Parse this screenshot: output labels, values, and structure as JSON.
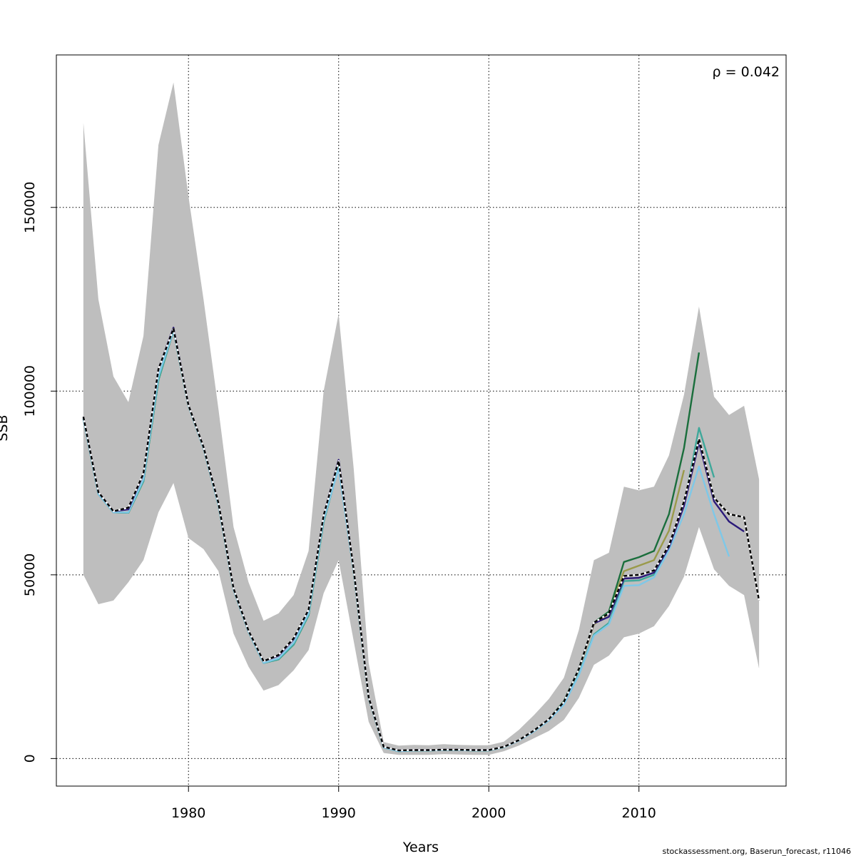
{
  "chart_data": {
    "type": "line",
    "title": "",
    "xlabel": "Years",
    "ylabel": "SSB",
    "annotation": "ρ = 0.042",
    "footer": "stockassessment.org, Baserun_forecast, r11046",
    "xlim": [
      1971.2,
      2019.8
    ],
    "ylim": [
      -7500,
      191500
    ],
    "x_ticks": [
      1980,
      1990,
      2000,
      2010
    ],
    "y_ticks": [
      0,
      50000,
      100000,
      150000
    ],
    "grid": true,
    "band_color": "#bebebe",
    "band": {
      "x": [
        1973,
        1974,
        1975,
        1976,
        1977,
        1978,
        1979,
        1980,
        1981,
        1982,
        1983,
        1984,
        1985,
        1986,
        1987,
        1988,
        1989,
        1990,
        1991,
        1992,
        1993,
        1994,
        1995,
        1996,
        1997,
        1998,
        1999,
        2000,
        2001,
        2002,
        2003,
        2004,
        2005,
        2006,
        2007,
        2008,
        2009,
        2010,
        2011,
        2012,
        2013,
        2014,
        2015,
        2016,
        2017,
        2018
      ],
      "lower": [
        50000,
        42000,
        43000,
        48000,
        54000,
        67000,
        75000,
        60000,
        57000,
        51000,
        34000,
        25000,
        18500,
        20000,
        24000,
        29500,
        45000,
        54000,
        32000,
        10000,
        1500,
        1000,
        1000,
        1000,
        1200,
        1100,
        1000,
        1000,
        2000,
        3500,
        5500,
        7500,
        10500,
        16500,
        25500,
        28000,
        33000,
        34000,
        36000,
        41500,
        49500,
        63000,
        51500,
        47000,
        44500,
        24500
      ],
      "upper": [
        173000,
        125000,
        104000,
        97000,
        115000,
        167000,
        184000,
        153000,
        125000,
        95000,
        63000,
        48000,
        37500,
        39500,
        44500,
        56500,
        100000,
        121000,
        79000,
        26000,
        4500,
        3500,
        3700,
        3600,
        3900,
        3700,
        3600,
        3600,
        4600,
        7800,
        11800,
        16200,
        22000,
        35000,
        54000,
        56000,
        74000,
        73000,
        74000,
        82500,
        99000,
        123000,
        98500,
        93500,
        96000,
        76000
      ]
    },
    "series": [
      {
        "color": "#000000",
        "dashed": true,
        "width": 2.4,
        "x": [
          1973,
          1974,
          1975,
          1976,
          1977,
          1978,
          1979,
          1980,
          1981,
          1982,
          1983,
          1984,
          1985,
          1986,
          1987,
          1988,
          1989,
          1990,
          1991,
          1992,
          1993,
          1994,
          1995,
          1996,
          1997,
          1998,
          1999,
          2000,
          2001,
          2002,
          2003,
          2004,
          2005,
          2006,
          2007,
          2008,
          2009,
          2010,
          2011,
          2012,
          2013,
          2014,
          2015,
          2016,
          2017,
          2018
        ],
        "values": [
          93000,
          72500,
          67300,
          68300,
          77600,
          106000,
          117000,
          96200,
          84800,
          69500,
          46300,
          34800,
          26500,
          28200,
          32700,
          40500,
          66200,
          81000,
          51500,
          16700,
          3200,
          2200,
          2300,
          2300,
          2400,
          2400,
          2300,
          2300,
          3200,
          5000,
          7600,
          10700,
          15400,
          24400,
          37000,
          39500,
          49700,
          50000,
          51200,
          58000,
          70000,
          87000,
          71000,
          66500,
          65700,
          43000
        ]
      },
      {
        "color": "#2b1a7a",
        "dashed": false,
        "width": 2.4,
        "x": [
          1973,
          1974,
          1975,
          1976,
          1977,
          1978,
          1979,
          1980,
          1981,
          1982,
          1983,
          1984,
          1985,
          1986,
          1987,
          1988,
          1989,
          1990,
          1991,
          1992,
          1993,
          1994,
          1995,
          1996,
          1997,
          1998,
          1999,
          2000,
          2001,
          2002,
          2003,
          2004,
          2005,
          2006,
          2007,
          2008,
          2009,
          2010,
          2011,
          2012,
          2013,
          2014,
          2015,
          2016,
          2017
        ],
        "values": [
          93000,
          72500,
          67300,
          67800,
          77500,
          106000,
          117300,
          96200,
          84800,
          69500,
          46300,
          34800,
          26500,
          28000,
          32500,
          40500,
          66200,
          81300,
          51500,
          16700,
          3200,
          2200,
          2300,
          2300,
          2400,
          2400,
          2300,
          2300,
          3200,
          5000,
          7600,
          10700,
          15400,
          24400,
          36800,
          38600,
          49000,
          49200,
          50600,
          57500,
          68800,
          86000,
          70000,
          64500,
          61800
        ]
      },
      {
        "color": "#7ec8e8",
        "dashed": false,
        "width": 2.4,
        "x": [
          1973,
          1974,
          1975,
          1976,
          1977,
          1978,
          1979,
          1980,
          1981,
          1982,
          1983,
          1984,
          1985,
          1986,
          1987,
          1988,
          1989,
          1990,
          1991,
          1992,
          1993,
          1994,
          1995,
          1996,
          1997,
          1998,
          1999,
          2000,
          2001,
          2002,
          2003,
          2004,
          2005,
          2006,
          2007,
          2008,
          2009,
          2010,
          2011,
          2012,
          2013,
          2014,
          2015,
          2016
        ],
        "values": [
          92500,
          72000,
          67000,
          67000,
          76000,
          104000,
          116500,
          96000,
          84500,
          69000,
          46000,
          34500,
          26000,
          27300,
          31500,
          39500,
          65000,
          79000,
          51000,
          16500,
          3000,
          2000,
          2200,
          2200,
          2300,
          2300,
          2200,
          2200,
          3100,
          4900,
          7400,
          10400,
          14700,
          22700,
          33500,
          36500,
          47000,
          47200,
          49300,
          56700,
          66500,
          79500,
          66500,
          55000
        ]
      },
      {
        "color": "#3ea89a",
        "dashed": false,
        "width": 2.4,
        "x": [
          1973,
          1974,
          1975,
          1976,
          1977,
          1978,
          1979,
          1980,
          1981,
          1982,
          1983,
          1984,
          1985,
          1986,
          1987,
          1988,
          1989,
          1990,
          1991,
          1992,
          1993,
          1994,
          1995,
          1996,
          1997,
          1998,
          1999,
          2000,
          2001,
          2002,
          2003,
          2004,
          2005,
          2006,
          2007,
          2008,
          2009,
          2010,
          2011,
          2012,
          2013,
          2014,
          2015
        ],
        "values": [
          92500,
          72000,
          67000,
          66900,
          75500,
          103000,
          116500,
          96000,
          84500,
          69000,
          46000,
          34500,
          26000,
          27000,
          31000,
          39000,
          64500,
          79500,
          51000,
          16500,
          3000,
          2000,
          2200,
          2200,
          2300,
          2300,
          2200,
          2200,
          3100,
          4900,
          7400,
          10400,
          14800,
          23000,
          33800,
          36900,
          48300,
          48500,
          50000,
          57500,
          69000,
          90000,
          76500
        ]
      },
      {
        "color": "#1a6e3c",
        "dashed": false,
        "width": 2.4,
        "x": [
          1973,
          1974,
          1975,
          1976,
          1977,
          1978,
          1979,
          1980,
          1981,
          1982,
          1983,
          1984,
          1985,
          1986,
          1987,
          1988,
          1989,
          1990,
          1991,
          1992,
          1993,
          1994,
          1995,
          1996,
          1997,
          1998,
          1999,
          2000,
          2001,
          2002,
          2003,
          2004,
          2005,
          2006,
          2007,
          2008,
          2009,
          2010,
          2011,
          2012,
          2013,
          2014
        ],
        "values": [
          92500,
          72000,
          67000,
          66900,
          75500,
          103000,
          116500,
          96000,
          84500,
          69000,
          46000,
          34500,
          26000,
          27000,
          31000,
          39000,
          64500,
          79500,
          51000,
          16500,
          3000,
          2000,
          2200,
          2200,
          2300,
          2300,
          2200,
          2200,
          3100,
          5000,
          7600,
          10700,
          15600,
          24500,
          37000,
          40000,
          53500,
          54800,
          56500,
          66500,
          84500,
          110500
        ]
      },
      {
        "color": "#9a9a4a",
        "dashed": false,
        "width": 2.4,
        "x": [
          1973,
          1974,
          1975,
          1976,
          1977,
          1978,
          1979,
          1980,
          1981,
          1982,
          1983,
          1984,
          1985,
          1986,
          1987,
          1988,
          1989,
          1990,
          1991,
          1992,
          1993,
          1994,
          1995,
          1996,
          1997,
          1998,
          1999,
          2000,
          2001,
          2002,
          2003,
          2004,
          2005,
          2006,
          2007,
          2008,
          2009,
          2010,
          2011,
          2012,
          2013
        ],
        "values": [
          92500,
          72000,
          67000,
          66900,
          75500,
          103000,
          116500,
          96000,
          84500,
          69000,
          46000,
          34500,
          26000,
          27000,
          31000,
          39000,
          64500,
          79500,
          51000,
          16500,
          3000,
          2000,
          2200,
          2200,
          2300,
          2300,
          2200,
          2200,
          3100,
          5000,
          7600,
          10700,
          15500,
          24300,
          36500,
          39500,
          51000,
          52500,
          54000,
          62000,
          78500
        ]
      }
    ]
  }
}
